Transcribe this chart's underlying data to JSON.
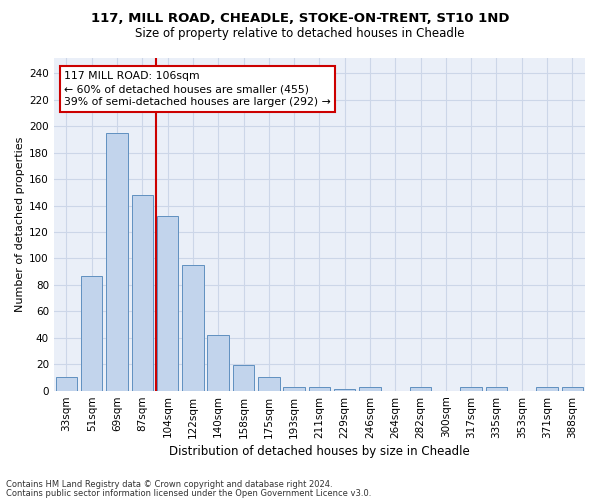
{
  "title1": "117, MILL ROAD, CHEADLE, STOKE-ON-TRENT, ST10 1ND",
  "title2": "Size of property relative to detached houses in Cheadle",
  "xlabel": "Distribution of detached houses by size in Cheadle",
  "ylabel": "Number of detached properties",
  "categories": [
    "33sqm",
    "51sqm",
    "69sqm",
    "87sqm",
    "104sqm",
    "122sqm",
    "140sqm",
    "158sqm",
    "175sqm",
    "193sqm",
    "211sqm",
    "229sqm",
    "246sqm",
    "264sqm",
    "282sqm",
    "300sqm",
    "317sqm",
    "335sqm",
    "353sqm",
    "371sqm",
    "388sqm"
  ],
  "values": [
    10,
    87,
    195,
    148,
    132,
    95,
    42,
    19,
    10,
    3,
    3,
    1,
    3,
    0,
    3,
    0,
    3,
    3,
    0,
    3,
    3
  ],
  "bar_color": "#c2d4ec",
  "bar_edge_color": "#6090c0",
  "vline_color": "#cc0000",
  "vline_x": 3.55,
  "annotation_line1": "117 MILL ROAD: 106sqm",
  "annotation_line2": "← 60% of detached houses are smaller (455)",
  "annotation_line3": "39% of semi-detached houses are larger (292) →",
  "annotation_box_edge_color": "#cc0000",
  "ylim_max": 252,
  "yticks": [
    0,
    20,
    40,
    60,
    80,
    100,
    120,
    140,
    160,
    180,
    200,
    220,
    240
  ],
  "footer1": "Contains HM Land Registry data © Crown copyright and database right 2024.",
  "footer2": "Contains public sector information licensed under the Open Government Licence v3.0.",
  "grid_color": "#ccd6e8",
  "bg_color": "#eaeff8",
  "title1_fontsize": 9.5,
  "title2_fontsize": 8.5,
  "xlabel_fontsize": 8.5,
  "ylabel_fontsize": 8.0,
  "tick_fontsize": 7.5,
  "footer_fontsize": 6.0,
  "ann_fontsize": 7.8
}
